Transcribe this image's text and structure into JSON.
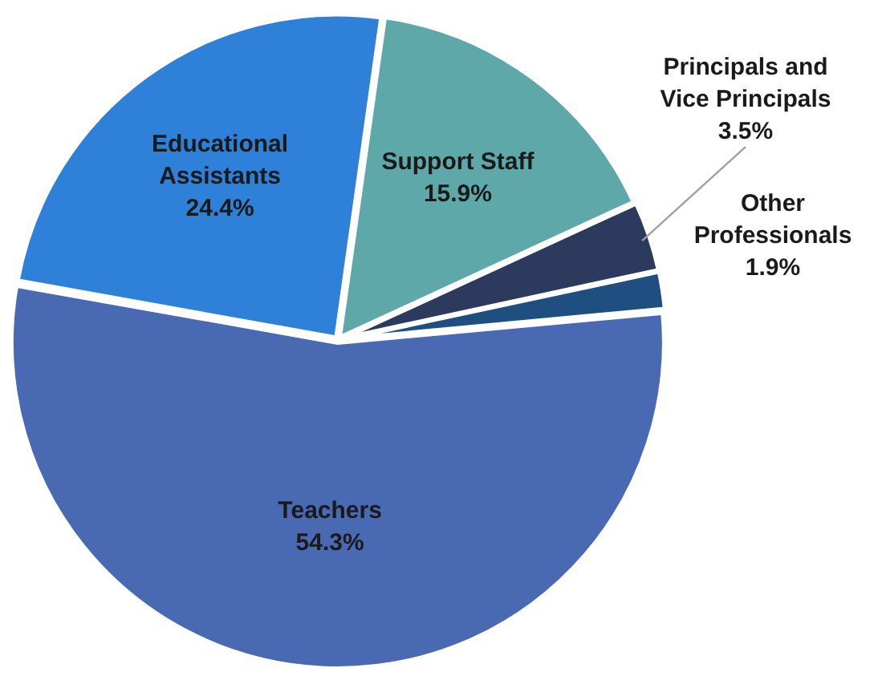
{
  "chart_data": {
    "type": "pie",
    "categories": [
      "Support Staff",
      "Principals and Vice Principals",
      "Other Professionals",
      "Teachers",
      "Educational Assistants"
    ],
    "values": [
      15.9,
      3.5,
      1.9,
      54.3,
      24.4
    ],
    "value_labels": [
      "15.9%",
      "3.5%",
      "1.9%",
      "54.3%",
      "24.4%"
    ],
    "colors": [
      "#5ea8aa",
      "#2c3a5e",
      "#1f4f80",
      "#4a69b3",
      "#2f80d8"
    ],
    "legend": false
  }
}
